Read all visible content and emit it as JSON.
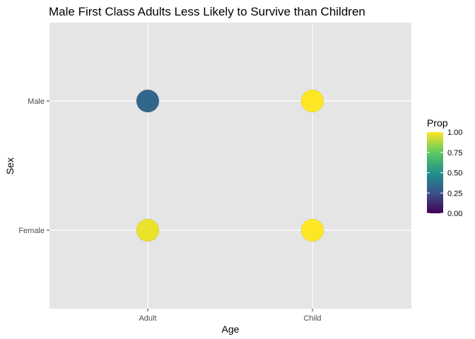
{
  "chart_data": {
    "type": "scatter",
    "title": "Male First Class Adults Less Likely to Survive than Children",
    "xlabel": "Age",
    "ylabel": "Sex",
    "x_categories": [
      "Adult",
      "Child"
    ],
    "y_categories": [
      "Female",
      "Male"
    ],
    "points": [
      {
        "x": "Adult",
        "y": "Male",
        "prop": 0.33
      },
      {
        "x": "Child",
        "y": "Male",
        "prop": 1.0
      },
      {
        "x": "Adult",
        "y": "Female",
        "prop": 0.97
      },
      {
        "x": "Child",
        "y": "Female",
        "prop": 1.0
      }
    ],
    "color_scale": {
      "name": "viridis",
      "title": "Prop",
      "range": [
        0,
        1
      ],
      "ticks": [
        1.0,
        0.75,
        0.5,
        0.25,
        0.0
      ],
      "tick_labels": [
        "1.00",
        "0.75",
        "0.50",
        "0.25",
        "0.00"
      ]
    },
    "grid": true,
    "legend_position": "right",
    "colors": {
      "panel_background": "#e5e5e5",
      "grid_line": "#ffffff",
      "viridis_stops": [
        "#440154",
        "#3b528b",
        "#21918c",
        "#5ec962",
        "#fde725"
      ]
    }
  }
}
